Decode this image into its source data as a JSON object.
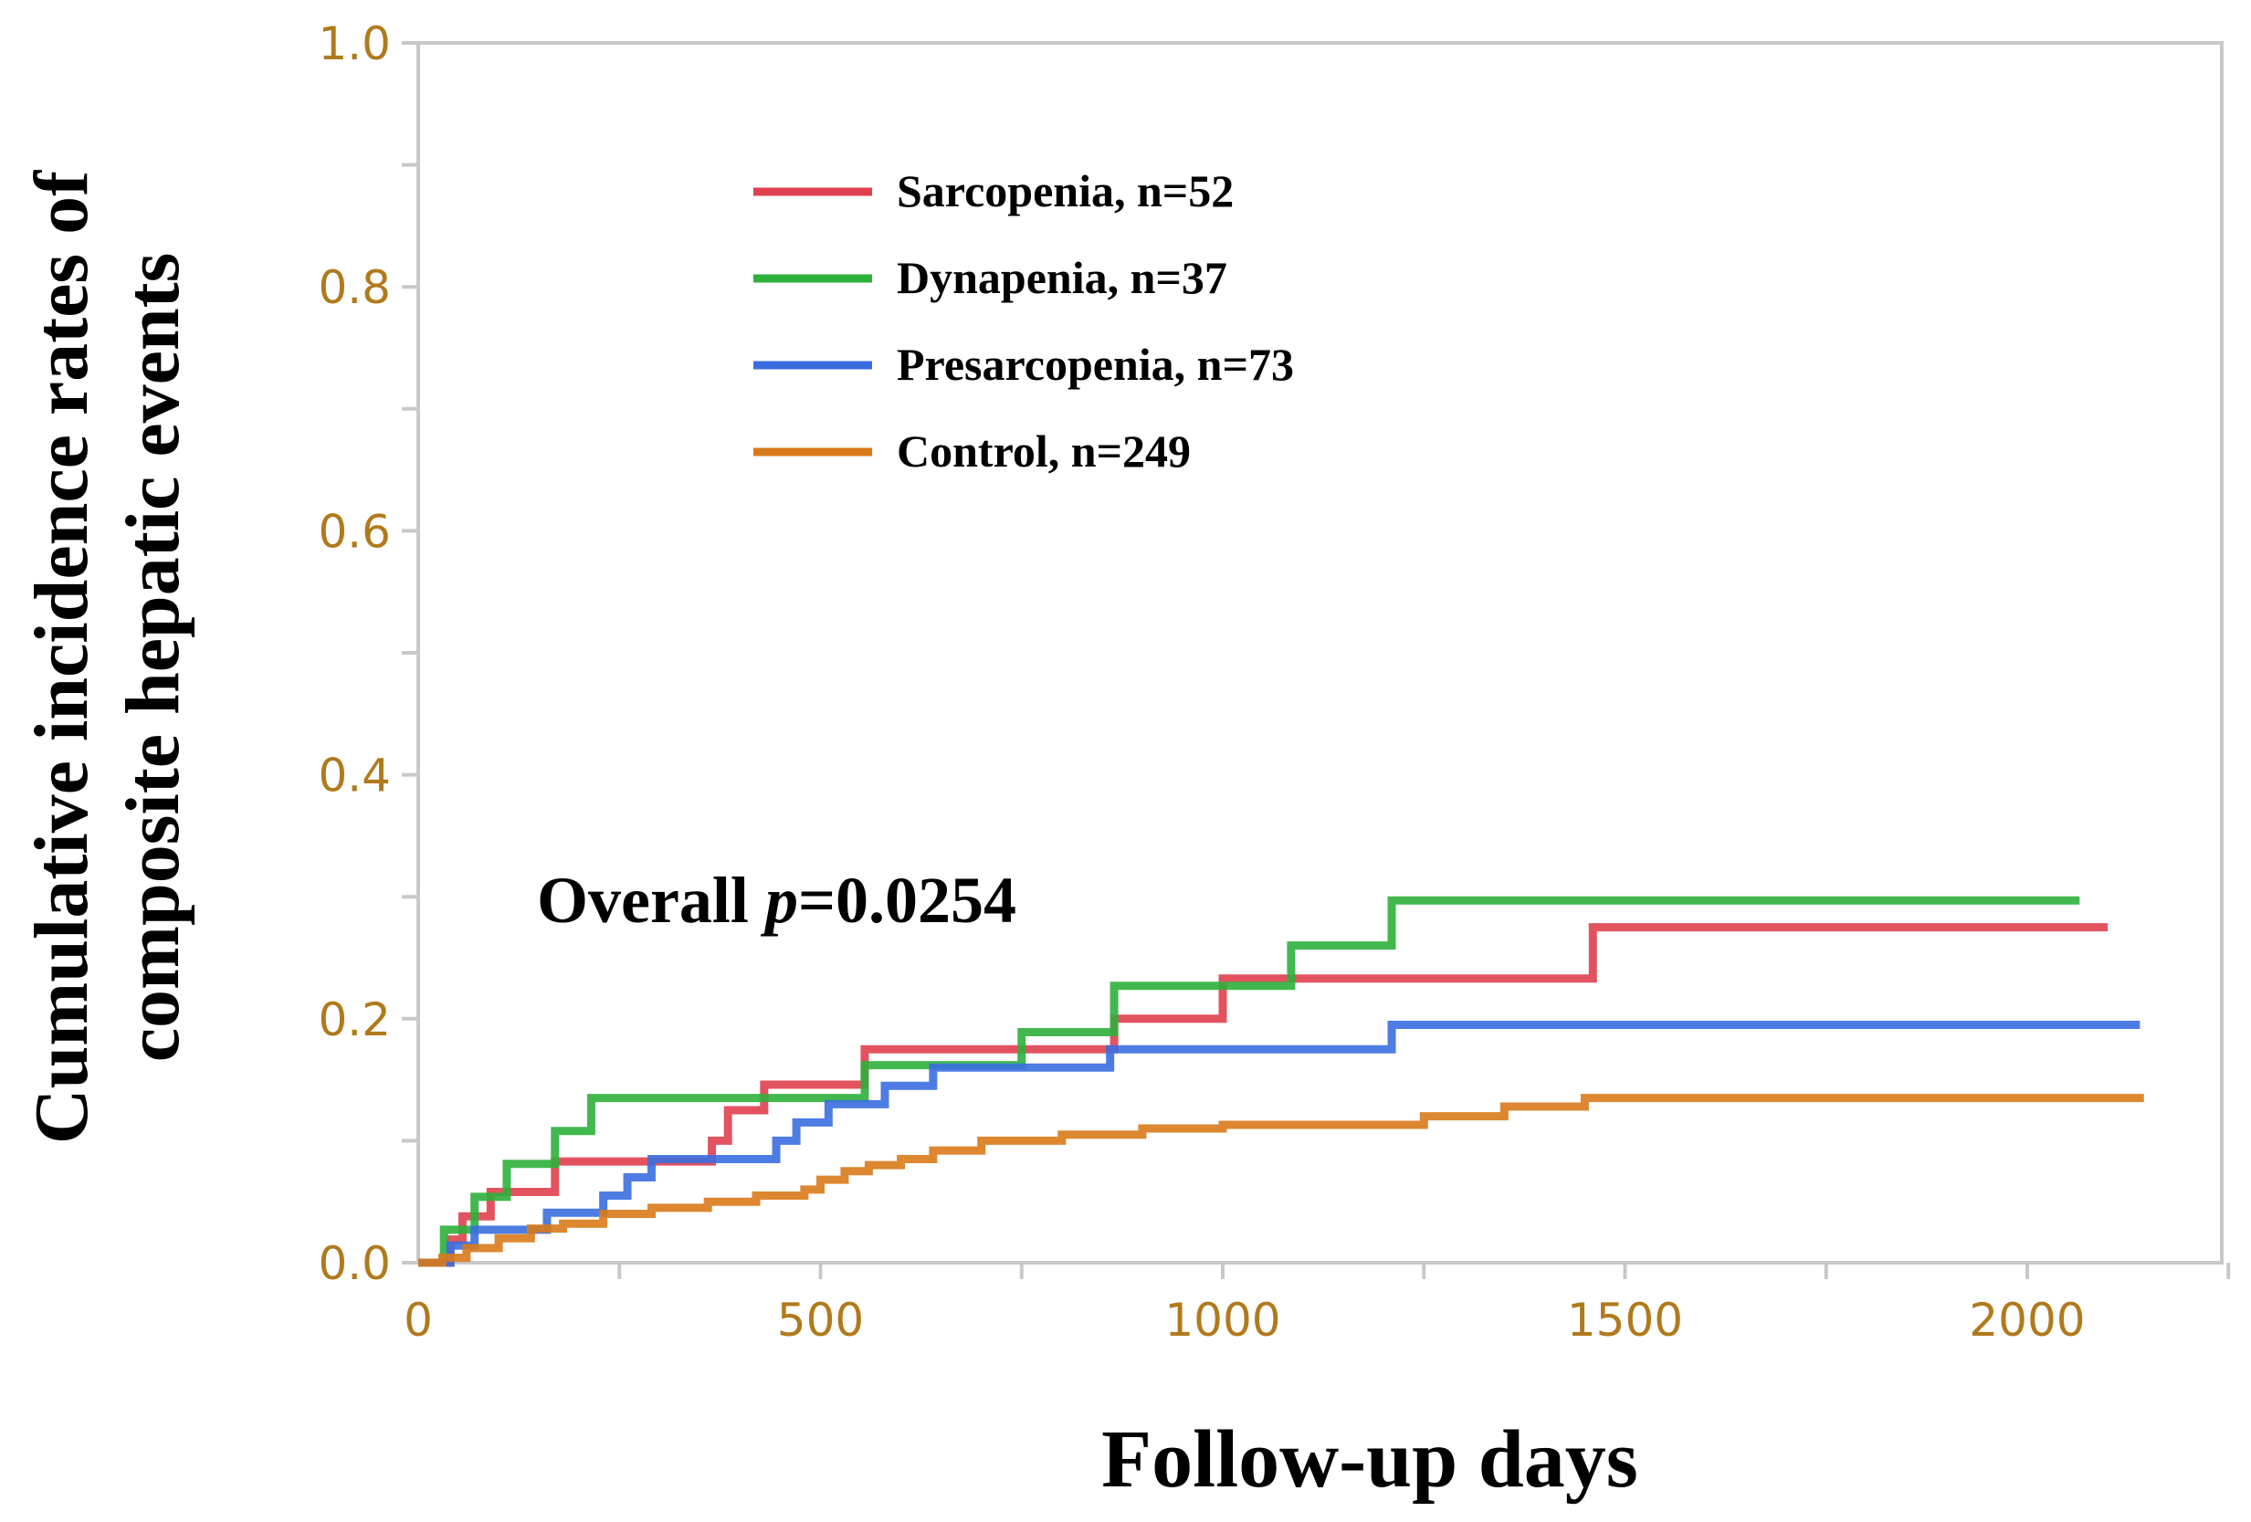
{
  "chart_data": {
    "type": "line",
    "subtype": "step (cumulative incidence)",
    "title": "",
    "xlabel": "Follow-up days",
    "ylabel_lines": [
      "Cumulative incidence rates of",
      "composite hepatic events"
    ],
    "xlim": [
      0,
      2250
    ],
    "ylim": [
      0,
      1.0
    ],
    "xticks": [
      0,
      500,
      1000,
      1500,
      2000
    ],
    "yticks": [
      0.0,
      0.2,
      0.4,
      0.6,
      0.8,
      1.0
    ],
    "ytick_labels": [
      "0.0",
      "0.2",
      "0.4",
      "0.6",
      "0.8",
      "1.0"
    ],
    "legend_position": "upper-left",
    "annotation": {
      "prefix": "Overall ",
      "italic": "p",
      "suffix": "=0.0254"
    },
    "series": [
      {
        "name": "Sarcopenia, n=52",
        "color": "#e0404e",
        "x": [
          0,
          40,
          55,
          90,
          170,
          365,
          385,
          430,
          555,
          865,
          1000,
          1460,
          2100
        ],
        "y": [
          0,
          0.019,
          0.038,
          0.058,
          0.083,
          0.1,
          0.125,
          0.146,
          0.175,
          0.2,
          0.233,
          0.275,
          0.275
        ]
      },
      {
        "name": "Dynapenia, n=37",
        "color": "#2eb03c",
        "x": [
          0,
          32,
          70,
          110,
          170,
          215,
          555,
          750,
          865,
          1085,
          1210,
          2065
        ],
        "y": [
          0,
          0.027,
          0.054,
          0.081,
          0.108,
          0.135,
          0.162,
          0.189,
          0.227,
          0.26,
          0.297,
          0.297
        ]
      },
      {
        "name": "Presarcopenia, n=73",
        "color": "#3a6ee0",
        "x": [
          0,
          40,
          70,
          160,
          230,
          260,
          290,
          445,
          470,
          510,
          580,
          640,
          860,
          1210,
          2140
        ],
        "y": [
          0,
          0.014,
          0.027,
          0.041,
          0.055,
          0.07,
          0.085,
          0.1,
          0.115,
          0.13,
          0.145,
          0.16,
          0.175,
          0.195,
          0.195
        ]
      },
      {
        "name": "Control, n=249",
        "color": "#d97a1a",
        "x": [
          0,
          30,
          60,
          100,
          140,
          180,
          230,
          290,
          360,
          420,
          480,
          500,
          530,
          560,
          600,
          640,
          700,
          800,
          900,
          1000,
          1250,
          1350,
          1450,
          2145
        ],
        "y": [
          0,
          0.004,
          0.012,
          0.02,
          0.028,
          0.032,
          0.04,
          0.045,
          0.05,
          0.055,
          0.06,
          0.068,
          0.075,
          0.08,
          0.085,
          0.092,
          0.1,
          0.105,
          0.11,
          0.113,
          0.12,
          0.128,
          0.135,
          0.135
        ]
      }
    ]
  }
}
